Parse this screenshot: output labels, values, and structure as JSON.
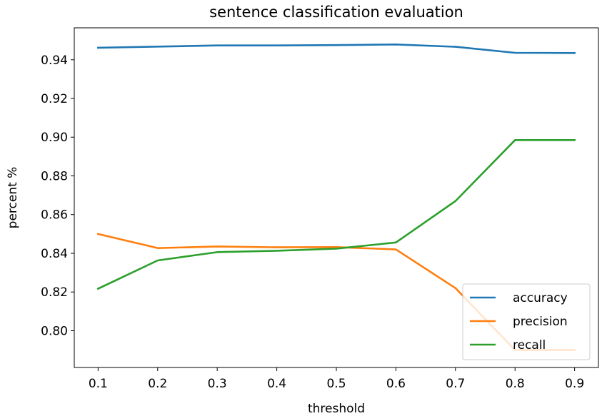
{
  "chart_data": {
    "type": "line",
    "title": "sentence classification evaluation",
    "xlabel": "threshold",
    "ylabel": "percent %",
    "x": [
      0.1,
      0.2,
      0.3,
      0.4,
      0.5,
      0.6,
      0.7,
      0.8,
      0.9
    ],
    "x_ticks": [
      "0.1",
      "0.2",
      "0.3",
      "0.4",
      "0.5",
      "0.6",
      "0.7",
      "0.8",
      "0.9"
    ],
    "y_ticks": [
      "0.80",
      "0.82",
      "0.84",
      "0.86",
      "0.88",
      "0.90",
      "0.92",
      "0.94"
    ],
    "xlim": [
      0.06,
      0.94
    ],
    "ylim": [
      0.781,
      0.9565
    ],
    "grid": false,
    "legend_position": "lower-right",
    "series": [
      {
        "name": "accuracy",
        "color": "#1f77b4",
        "values": [
          0.9462,
          0.9468,
          0.9474,
          0.9474,
          0.9476,
          0.9479,
          0.9467,
          0.9436,
          0.9435
        ]
      },
      {
        "name": "precision",
        "color": "#ff7f0e",
        "values": [
          0.85,
          0.8427,
          0.8435,
          0.8431,
          0.8432,
          0.842,
          0.822,
          0.79,
          0.79
        ]
      },
      {
        "name": "recall",
        "color": "#2ca02c",
        "values": [
          0.8217,
          0.8363,
          0.8406,
          0.8413,
          0.8424,
          0.8456,
          0.867,
          0.8985,
          0.8985
        ]
      }
    ]
  }
}
